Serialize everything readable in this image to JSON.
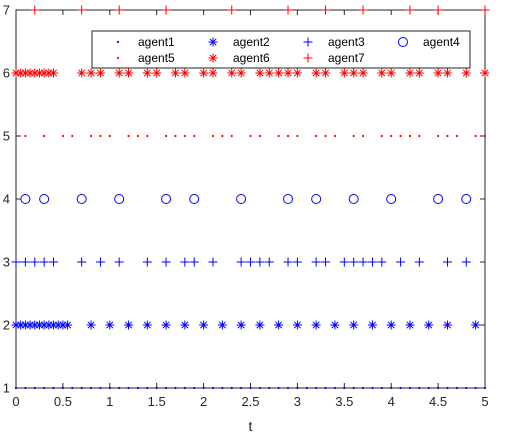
{
  "chart_data": {
    "type": "scatter",
    "xlabel": "t",
    "ylabel": "",
    "title": "",
    "xlim": [
      0,
      5
    ],
    "ylim": [
      1,
      7
    ],
    "xticks": [
      0,
      0.5,
      1,
      1.5,
      2,
      2.5,
      3,
      3.5,
      4,
      4.5,
      5
    ],
    "xtick_labels": [
      "0",
      "0.5",
      "1",
      "1.5",
      "2",
      "2.5",
      "3",
      "3.5",
      "4",
      "4.5",
      "5"
    ],
    "yticks": [
      1,
      2,
      3,
      4,
      5,
      6,
      7
    ],
    "ytick_labels": [
      "1",
      "2",
      "3",
      "4",
      "5",
      "6",
      "7"
    ],
    "grid": false,
    "legend_position": "top",
    "series": [
      {
        "name": "agent1",
        "marker": "dot",
        "color": "#0000ff",
        "y": 1,
        "x": [
          0.0,
          0.1,
          0.2,
          0.3,
          0.4,
          0.5,
          0.6,
          0.7,
          0.8,
          0.9,
          1.0,
          1.1,
          1.2,
          1.3,
          1.4,
          1.5,
          1.6,
          1.7,
          1.8,
          1.9,
          2.0,
          2.1,
          2.2,
          2.3,
          2.4,
          2.5,
          2.6,
          2.7,
          2.8,
          2.9,
          3.0,
          3.1,
          3.2,
          3.3,
          3.4,
          3.5,
          3.6,
          3.7,
          3.8,
          3.9,
          4.0,
          4.1,
          4.2,
          4.3,
          4.4,
          4.5,
          4.6,
          4.7,
          4.8,
          4.9,
          5.0
        ]
      },
      {
        "name": "agent2",
        "marker": "asterisk",
        "color": "#0000ff",
        "y": 2,
        "x": [
          0.0,
          0.05,
          0.1,
          0.15,
          0.2,
          0.25,
          0.3,
          0.35,
          0.4,
          0.45,
          0.5,
          0.55,
          0.8,
          1.0,
          1.2,
          1.4,
          1.6,
          1.8,
          2.0,
          2.2,
          2.4,
          2.6,
          2.8,
          3.0,
          3.2,
          3.4,
          3.6,
          3.8,
          4.0,
          4.2,
          4.4,
          4.6,
          4.9
        ]
      },
      {
        "name": "agent3",
        "marker": "plus",
        "color": "#0000ff",
        "y": 3,
        "x": [
          0.0,
          0.1,
          0.2,
          0.3,
          0.4,
          0.7,
          0.9,
          1.1,
          1.4,
          1.6,
          1.8,
          1.9,
          2.1,
          2.4,
          2.5,
          2.6,
          2.7,
          2.9,
          3.0,
          3.2,
          3.3,
          3.5,
          3.6,
          3.7,
          3.8,
          3.9,
          4.1,
          4.3,
          4.6,
          4.8
        ]
      },
      {
        "name": "agent4",
        "marker": "circle",
        "color": "#0000ff",
        "y": 4,
        "x": [
          0.1,
          0.3,
          0.7,
          1.1,
          1.6,
          1.9,
          2.4,
          2.9,
          3.2,
          3.6,
          4.0,
          4.5,
          4.8
        ]
      },
      {
        "name": "agent5",
        "marker": "dot",
        "color": "#ff0000",
        "y": 5,
        "x": [
          0.1,
          0.3,
          0.5,
          0.6,
          0.8,
          0.9,
          1.0,
          1.2,
          1.3,
          1.4,
          1.6,
          1.7,
          1.8,
          1.9,
          2.1,
          2.2,
          2.3,
          2.5,
          2.6,
          2.8,
          2.9,
          3.0,
          3.2,
          3.3,
          3.4,
          3.6,
          3.7,
          3.9,
          4.0,
          4.1,
          4.2,
          4.3,
          4.5,
          4.6,
          4.7,
          4.9,
          5.0
        ]
      },
      {
        "name": "agent6",
        "marker": "asterisk",
        "color": "#ff0000",
        "y": 6,
        "x": [
          0.0,
          0.05,
          0.1,
          0.15,
          0.2,
          0.25,
          0.3,
          0.35,
          0.4,
          0.7,
          0.8,
          0.9,
          1.1,
          1.2,
          1.4,
          1.5,
          1.7,
          1.8,
          2.0,
          2.1,
          2.3,
          2.4,
          2.6,
          2.7,
          2.8,
          2.9,
          3.0,
          3.2,
          3.3,
          3.5,
          3.6,
          3.7,
          3.9,
          4.0,
          4.2,
          4.3,
          4.5,
          4.6,
          4.8,
          5.0
        ]
      },
      {
        "name": "agent7",
        "marker": "plus",
        "color": "#ff0000",
        "y": 7,
        "x": [
          0.2,
          0.7,
          1.1,
          1.6,
          2.3,
          2.9,
          3.3,
          3.7,
          4.2,
          4.5,
          5.0
        ]
      }
    ]
  }
}
